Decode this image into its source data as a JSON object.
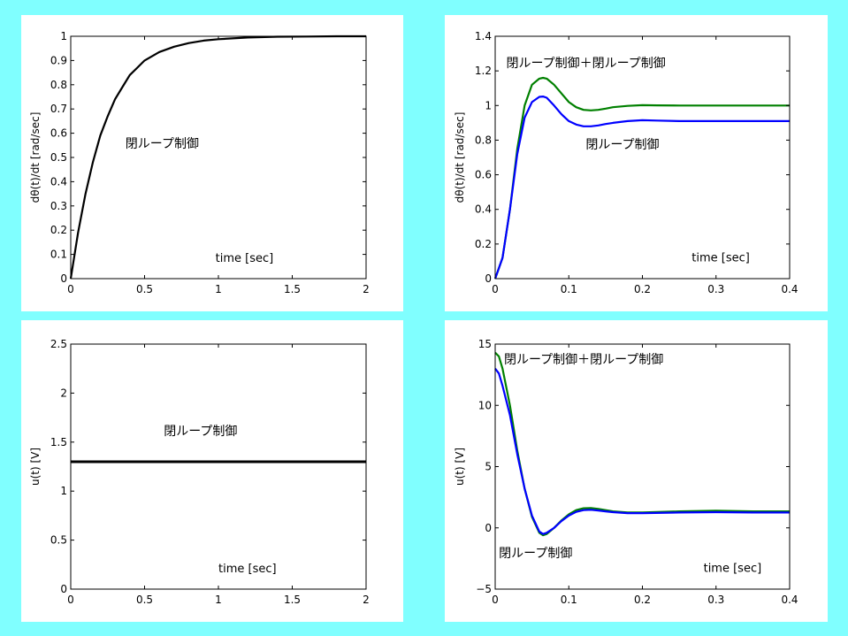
{
  "chart_data": [
    {
      "type": "line",
      "xlabel": "",
      "ylabel": "dθ(t)/dt [rad/sec]",
      "xlim": [
        0,
        2
      ],
      "ylim": [
        0,
        1
      ],
      "xticks": [
        0,
        0.5,
        1,
        1.5,
        2
      ],
      "xtick_labels": [
        "0",
        "0.5",
        "1",
        "1.5",
        "2"
      ],
      "yticks": [
        0,
        0.1,
        0.2,
        0.3,
        0.4,
        0.5,
        0.6,
        0.7,
        0.8,
        0.9,
        1
      ],
      "ytick_labels": [
        "0",
        "0.1",
        "0.2",
        "0.3",
        "0.4",
        "0.5",
        "0.6",
        "0.7",
        "0.8",
        "0.9",
        "1"
      ],
      "annotations": [
        {
          "text": "閉ループ制御",
          "x": 0.37,
          "y": 0.54
        },
        {
          "text": "time [sec]",
          "x": 0.98,
          "y": 0.07
        }
      ],
      "series": [
        {
          "name": "閉ループ制御",
          "color": "#000000",
          "x": [
            0,
            0.05,
            0.1,
            0.15,
            0.2,
            0.25,
            0.3,
            0.35,
            0.4,
            0.45,
            0.5,
            0.6,
            0.7,
            0.8,
            0.9,
            1.0,
            1.2,
            1.4,
            1.6,
            1.8,
            2.0
          ],
          "y": [
            0,
            0.19,
            0.35,
            0.48,
            0.59,
            0.67,
            0.74,
            0.79,
            0.84,
            0.87,
            0.9,
            0.935,
            0.957,
            0.972,
            0.982,
            0.988,
            0.995,
            0.998,
            0.999,
            1.0,
            1.0
          ]
        }
      ]
    },
    {
      "type": "line",
      "xlabel": "",
      "ylabel": "dθ(t)/dt [rad/sec]",
      "xlim": [
        0,
        0.4
      ],
      "ylim": [
        0,
        1.4
      ],
      "xticks": [
        0,
        0.1,
        0.2,
        0.3,
        0.4
      ],
      "xtick_labels": [
        "0",
        "0.1",
        "0.2",
        "0.3",
        "0.4"
      ],
      "yticks": [
        0,
        0.2,
        0.4,
        0.6,
        0.8,
        1,
        1.2,
        1.4
      ],
      "ytick_labels": [
        "0",
        "0.2",
        "0.4",
        "0.6",
        "0.8",
        "1",
        "1.2",
        "1.4"
      ],
      "annotations": [
        {
          "text": "閉ループ制御＋閉ループ制御",
          "x": 0.015,
          "y": 1.22
        },
        {
          "text": "閉ループ制御",
          "x": 0.123,
          "y": 0.75
        },
        {
          "text": "time [sec]",
          "x": 0.267,
          "y": 0.1
        }
      ],
      "series": [
        {
          "name": "閉ループ制御＋閉ループ制御",
          "color": "#008000",
          "x": [
            0,
            0.01,
            0.02,
            0.03,
            0.04,
            0.05,
            0.06,
            0.065,
            0.07,
            0.08,
            0.09,
            0.1,
            0.11,
            0.12,
            0.13,
            0.14,
            0.15,
            0.16,
            0.18,
            0.2,
            0.22,
            0.25,
            0.3,
            0.35,
            0.4
          ],
          "y": [
            0,
            0.12,
            0.4,
            0.75,
            1.0,
            1.12,
            1.155,
            1.16,
            1.155,
            1.12,
            1.07,
            1.02,
            0.99,
            0.975,
            0.972,
            0.975,
            0.982,
            0.99,
            0.998,
            1.002,
            1.001,
            1.0,
            1.0,
            1.0,
            1.0
          ]
        },
        {
          "name": "閉ループ制御",
          "color": "#0000ff",
          "x": [
            0,
            0.01,
            0.02,
            0.03,
            0.04,
            0.05,
            0.06,
            0.065,
            0.07,
            0.08,
            0.09,
            0.1,
            0.11,
            0.12,
            0.13,
            0.14,
            0.15,
            0.16,
            0.18,
            0.2,
            0.22,
            0.25,
            0.3,
            0.35,
            0.4
          ],
          "y": [
            0,
            0.12,
            0.4,
            0.72,
            0.93,
            1.02,
            1.05,
            1.052,
            1.045,
            1.0,
            0.95,
            0.91,
            0.89,
            0.88,
            0.88,
            0.885,
            0.893,
            0.9,
            0.91,
            0.915,
            0.913,
            0.91,
            0.91,
            0.91,
            0.91
          ]
        }
      ]
    },
    {
      "type": "line",
      "xlabel": "",
      "ylabel": "u(t) [V]",
      "xlim": [
        0,
        2
      ],
      "ylim": [
        0,
        2.5
      ],
      "xticks": [
        0,
        0.5,
        1,
        1.5,
        2
      ],
      "xtick_labels": [
        "0",
        "0.5",
        "1",
        "1.5",
        "2"
      ],
      "yticks": [
        0,
        0.5,
        1,
        1.5,
        2,
        2.5
      ],
      "ytick_labels": [
        "0",
        "0.5",
        "1",
        "1.5",
        "2",
        "2.5"
      ],
      "annotations": [
        {
          "text": "閉ループ制御",
          "x": 0.63,
          "y": 1.57
        },
        {
          "text": "time [sec]",
          "x": 1.0,
          "y": 0.17
        }
      ],
      "series": [
        {
          "name": "閉ループ制御",
          "color": "#000000",
          "x": [
            0,
            2
          ],
          "y": [
            1.3,
            1.3
          ]
        }
      ]
    },
    {
      "type": "line",
      "xlabel": "",
      "ylabel": "u(t) [V]",
      "xlim": [
        0,
        0.4
      ],
      "ylim": [
        -5,
        15
      ],
      "xticks": [
        0,
        0.1,
        0.2,
        0.3,
        0.4
      ],
      "xtick_labels": [
        "0",
        "0.1",
        "0.2",
        "0.3",
        "0.4"
      ],
      "yticks": [
        -5,
        0,
        5,
        10,
        15
      ],
      "ytick_labels": [
        "−5",
        "0",
        "5",
        "10",
        "15"
      ],
      "annotations": [
        {
          "text": "閉ループ制御＋閉ループ制御",
          "x": 0.012,
          "y": 13.4
        },
        {
          "text": "閉ループ制御",
          "x": 0.005,
          "y": -2.4
        },
        {
          "text": "time [sec]",
          "x": 0.283,
          "y": -3.6
        }
      ],
      "series": [
        {
          "name": "閉ループ制御＋閉ループ制御",
          "color": "#008000",
          "x": [
            0,
            0.005,
            0.01,
            0.02,
            0.03,
            0.04,
            0.05,
            0.06,
            0.065,
            0.07,
            0.08,
            0.09,
            0.1,
            0.11,
            0.12,
            0.13,
            0.14,
            0.15,
            0.16,
            0.18,
            0.2,
            0.25,
            0.3,
            0.35,
            0.4
          ],
          "y": [
            14.3,
            14.0,
            13.0,
            10.0,
            6.3,
            3.2,
            0.9,
            -0.4,
            -0.6,
            -0.5,
            0.0,
            0.6,
            1.1,
            1.45,
            1.6,
            1.62,
            1.55,
            1.45,
            1.35,
            1.25,
            1.25,
            1.35,
            1.4,
            1.35,
            1.35
          ]
        },
        {
          "name": "閉ループ制御",
          "color": "#0000ff",
          "x": [
            0,
            0.005,
            0.01,
            0.02,
            0.03,
            0.04,
            0.05,
            0.06,
            0.065,
            0.07,
            0.08,
            0.09,
            0.1,
            0.11,
            0.12,
            0.13,
            0.14,
            0.15,
            0.16,
            0.18,
            0.2,
            0.25,
            0.3,
            0.35,
            0.4
          ],
          "y": [
            13.0,
            12.6,
            11.6,
            9.2,
            6.0,
            3.2,
            1.0,
            -0.3,
            -0.5,
            -0.4,
            0.0,
            0.55,
            1.0,
            1.3,
            1.45,
            1.48,
            1.42,
            1.35,
            1.28,
            1.2,
            1.2,
            1.25,
            1.28,
            1.25,
            1.25
          ]
        }
      ]
    }
  ]
}
